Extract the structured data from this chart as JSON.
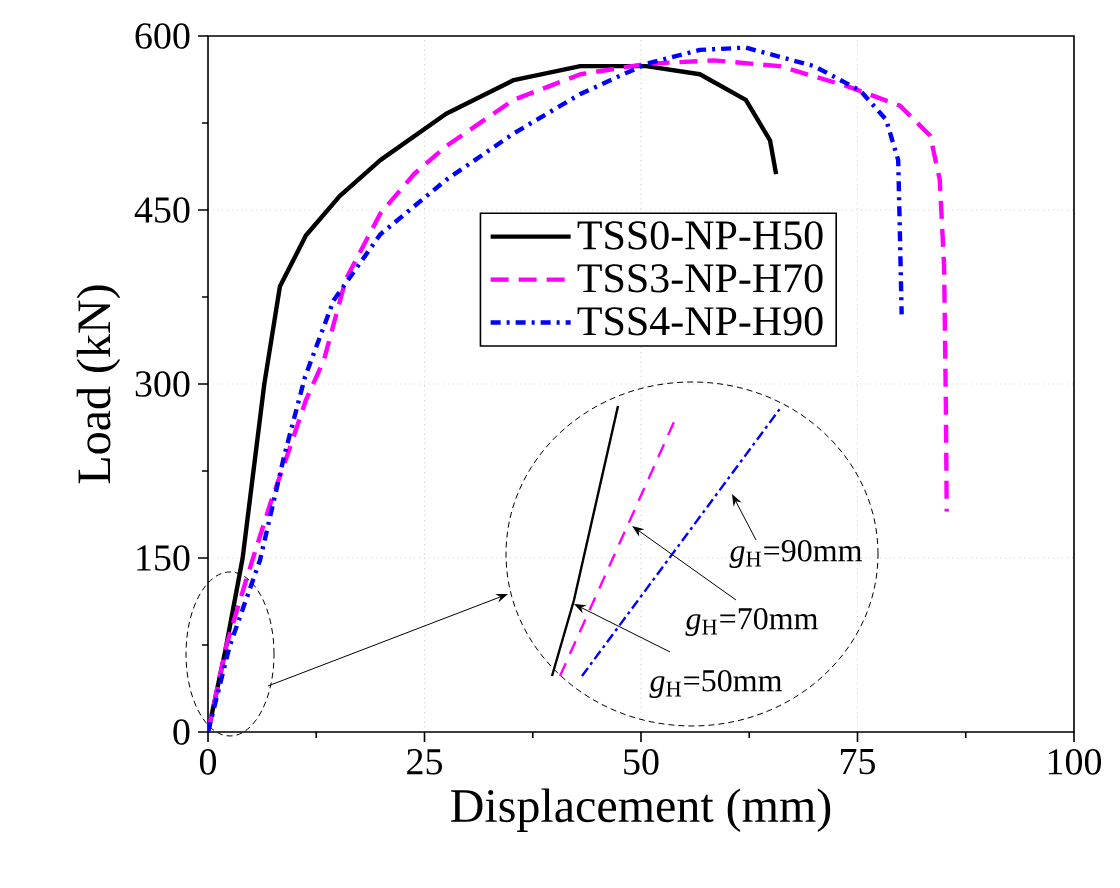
{
  "chart_data": {
    "type": "line",
    "xlabel": "Displacement (mm)",
    "ylabel": "Load (kN)",
    "xlim": [
      0,
      100
    ],
    "ylim": [
      0,
      600
    ],
    "xticks": [
      0,
      25,
      50,
      75,
      100
    ],
    "yticks": [
      0,
      150,
      300,
      450,
      600
    ],
    "grid": true,
    "legend": "center",
    "series": [
      {
        "name": "TSS0-NP-H50",
        "color": "#000000",
        "line_style": "solid",
        "x": [
          0,
          2,
          4,
          6.5,
          8.3,
          11.3,
          15.2,
          19.9,
          27.5,
          35.3,
          43,
          50.6,
          56.8,
          62.1,
          64.9,
          65.6
        ],
        "values": [
          0,
          70,
          150,
          300,
          384,
          428,
          462,
          493,
          533,
          562,
          574,
          574,
          567,
          545,
          510,
          481
        ]
      },
      {
        "name": "TSS3-NP-H70",
        "color": "#ff00ff",
        "line_style": "dashed",
        "x": [
          0,
          2.1,
          4.4,
          7.2,
          9.5,
          11.3,
          13.4,
          15.9,
          19.9,
          23.8,
          27.5,
          35.3,
          43,
          50.6,
          58.4,
          66,
          73.7,
          79.9,
          83.4,
          84.5,
          85,
          85.2,
          85.3
        ],
        "values": [
          0,
          74,
          131,
          197,
          246,
          286,
          321,
          390,
          447,
          481,
          505,
          545,
          567,
          576,
          579,
          574,
          557,
          540,
          514,
          476,
          402,
          286,
          190
        ]
      },
      {
        "name": "TSS4-NP-H90",
        "color": "#0000ff",
        "line_style": "dotted",
        "x": [
          0,
          2.5,
          6,
          8.8,
          11.2,
          14.5,
          19.9,
          27.5,
          35.3,
          43,
          50.6,
          56.8,
          62.1,
          70,
          75.3,
          78.3,
          79.7,
          79.9,
          80.1
        ],
        "values": [
          0,
          74,
          148,
          238,
          306,
          372,
          429,
          476,
          516,
          550,
          576,
          588,
          590,
          574,
          553,
          528,
          493,
          429,
          360
        ]
      }
    ],
    "annotations": [
      "*g*$_{H}$=90mm",
      "*g*$_{H}$=70mm",
      "*g*$_{H}$=50mm"
    ]
  }
}
